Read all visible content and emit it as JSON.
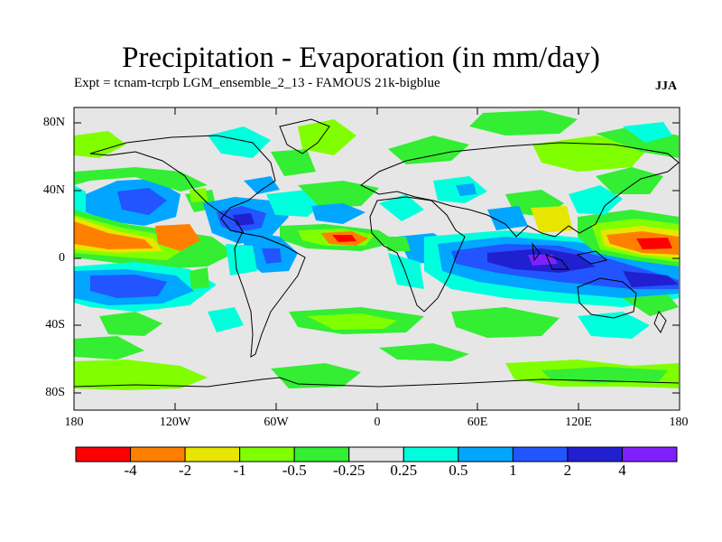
{
  "title": "Precipitation - Evaporation (in mm/day)",
  "subtitle_left": "Expt = tcnam-tcrpb      LGM_ensemble_2_13 - FAMOUS 21k-bigblue",
  "season": "JJA",
  "lat_ticks": [
    "80N",
    "40N",
    "0",
    "40S",
    "80S"
  ],
  "lon_ticks": [
    "180",
    "120W",
    "60W",
    "0",
    "60E",
    "120E",
    "180"
  ],
  "colorbar": {
    "colors": [
      "#ff0000",
      "#ff8000",
      "#e6e600",
      "#80ff00",
      "#33ee33",
      "#e6e6e6",
      "#00ffdd",
      "#00a6ff",
      "#2255ff",
      "#2020d0",
      "#8020ff"
    ],
    "labels": [
      "-4",
      "-2",
      "-1",
      "-0.5",
      "-0.25",
      "0.25",
      "0.5",
      "1",
      "2",
      "4"
    ]
  }
}
